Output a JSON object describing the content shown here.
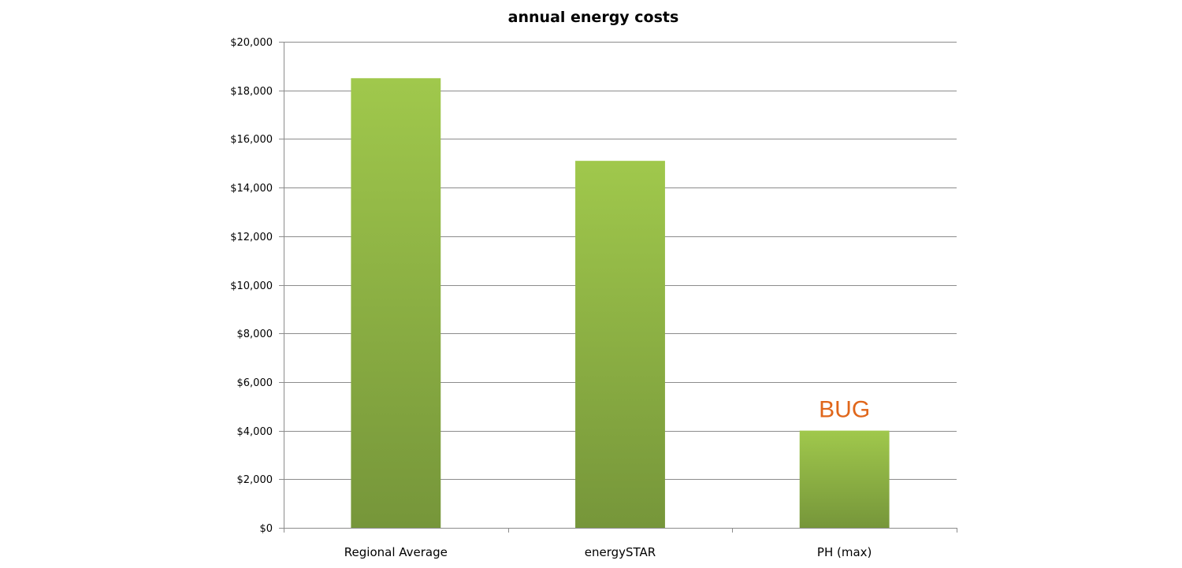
{
  "chart_data": {
    "type": "bar",
    "title": "annual energy costs",
    "xlabel": "",
    "ylabel": "",
    "categories": [
      "Regional Average",
      "energySTAR",
      "PH (max)"
    ],
    "values": [
      18500,
      15100,
      4000
    ],
    "ylim": [
      0,
      20000
    ],
    "y_ticks": [
      0,
      2000,
      4000,
      6000,
      8000,
      10000,
      12000,
      14000,
      16000,
      18000,
      20000
    ],
    "y_tick_labels": [
      "$0",
      "$2,000",
      "$4,000",
      "$6,000",
      "$8,000",
      "$10,000",
      "$12,000",
      "$14,000",
      "$16,000",
      "$18,000",
      "$20,000"
    ],
    "grid": true,
    "legend": "none",
    "bar_color_top": "#a0c84c",
    "bar_color_bottom": "#76963a",
    "annotations": [
      {
        "text": "BUG",
        "category": "PH (max)",
        "color": "#e0661a"
      }
    ]
  }
}
